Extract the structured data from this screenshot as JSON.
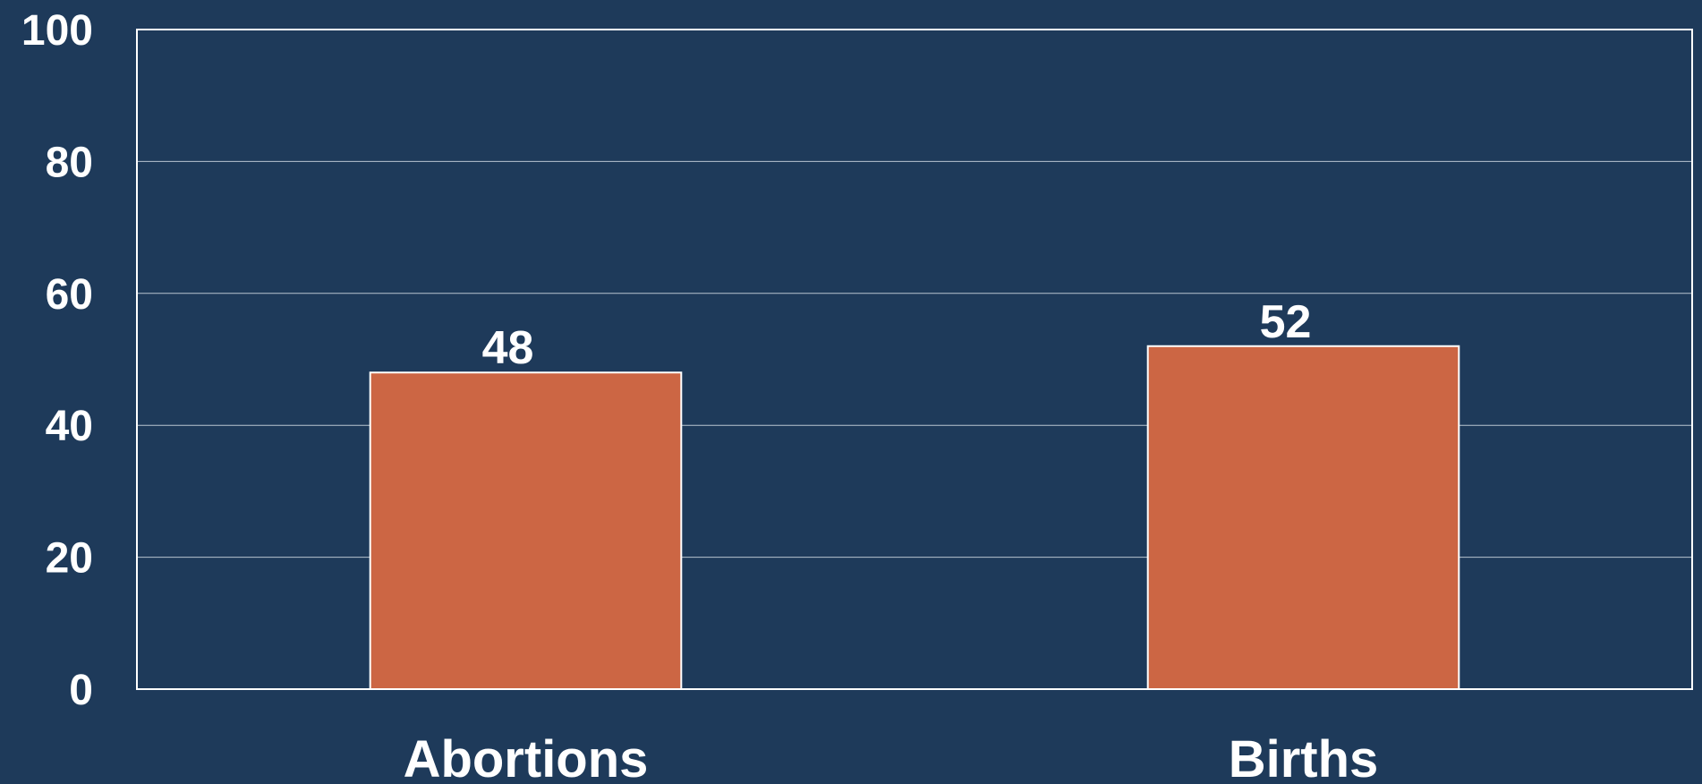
{
  "chart_data": {
    "type": "bar",
    "categories": [
      "Abortions",
      "Births"
    ],
    "values": [
      48,
      52
    ],
    "color": "#cc6644",
    "ylim": [
      0,
      100
    ],
    "yticks": [
      0,
      20,
      40,
      60,
      80,
      100
    ],
    "grid": true
  }
}
